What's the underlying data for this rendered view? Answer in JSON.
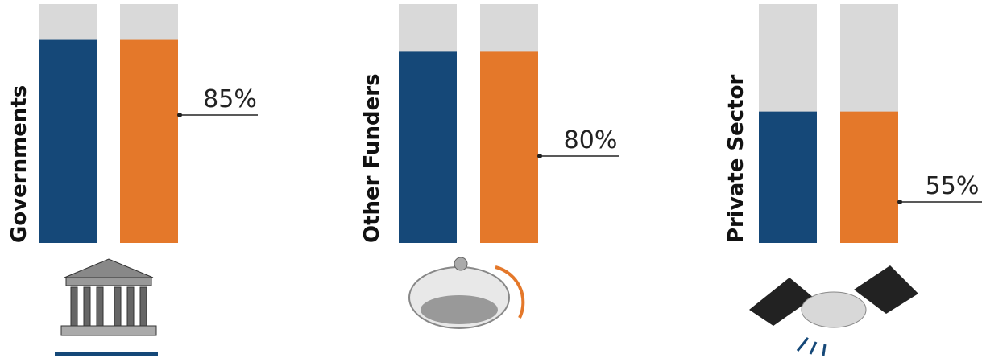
{
  "chart_data": {
    "type": "bar",
    "categories": [
      "Governments",
      "Other Funders",
      "Private Sector"
    ],
    "ylim": [
      0,
      100
    ],
    "background_color": "#d9d9d9",
    "series": [
      {
        "color": "#154878",
        "values": [
          85,
          80,
          55
        ]
      },
      {
        "color": "#e4782a",
        "values": [
          85,
          80,
          55
        ],
        "value_labels": [
          "85%",
          "80%",
          "55%"
        ]
      }
    ]
  }
}
